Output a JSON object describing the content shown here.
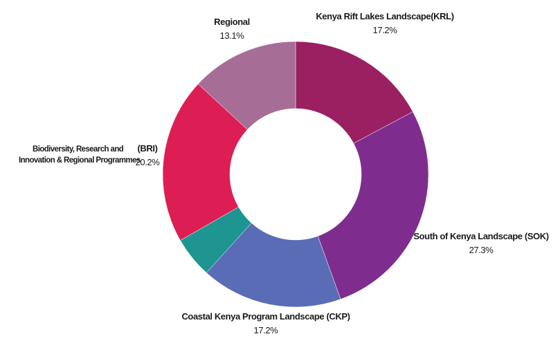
{
  "chart_data": {
    "type": "pie",
    "donut": true,
    "categories": [
      "Kenya Rift Lakes Landscape(KRL)",
      "South of Kenya Landscape (SOK)",
      "Coastal Kenya Program Landscape (CKP)",
      "",
      "Biodiversity, Research and Innovation & Regional Programmes (BRI)",
      "Regional"
    ],
    "values": [
      17.2,
      27.3,
      17.2,
      5.0,
      20.2,
      13.1
    ],
    "value_labels": [
      "17.2%",
      "27.3%",
      "17.2%",
      "",
      "20.2%",
      "13.1%"
    ],
    "colors": [
      "#9b2062",
      "#7e2d8f",
      "#5a6cb5",
      "#1e9591",
      "#dd1e54",
      "#a66d97"
    ],
    "legend": "none"
  },
  "labels": {
    "krl": {
      "name": "Kenya Rift Lakes Landscape(KRL)",
      "pct": "17.2%"
    },
    "sok": {
      "name": "South of Kenya Landscape (SOK)",
      "pct": "27.3%"
    },
    "ckp": {
      "name": "Coastal Kenya Program Landscape (CKP)",
      "pct": "17.2%"
    },
    "bri": {
      "name_line1": "Biodiversity, Research and",
      "name_line2": "Innovation & Regional Programmes",
      "abbr": "(BRI)",
      "pct": "20.2%"
    },
    "regional": {
      "name": "Regional",
      "pct": "13.1%"
    }
  }
}
